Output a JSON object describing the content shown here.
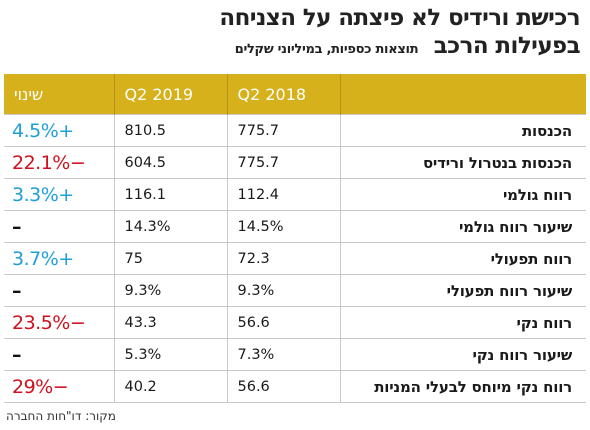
{
  "header": {
    "title_line1": "רכישת ורידיס לא פיצתה על הצניחה",
    "title_line2": "בפעילות הרכב",
    "subtitle": "תוצאות כספיות, במיליוני שקלים"
  },
  "table": {
    "columns": [
      "",
      "Q2 2018",
      "Q2 2019",
      "שינוי"
    ],
    "rows": [
      {
        "label": "הכנסות",
        "q2018": "775.7",
        "q2019": "810.5",
        "change": "+4.5%",
        "dir": "pos"
      },
      {
        "label": "הכנסות בנטרול ורידיס",
        "q2018": "775.7",
        "q2019": "604.5",
        "change": "−22.1%",
        "dir": "neg"
      },
      {
        "label": "רווח גולמי",
        "q2018": "112.4",
        "q2019": "116.1",
        "change": "+3.3%",
        "dir": "pos"
      },
      {
        "label": "שיעור רווח גולמי",
        "q2018": "14.5%",
        "q2019": "14.3%",
        "change": "–",
        "dir": "flat"
      },
      {
        "label": "רווח תפעולי",
        "q2018": "72.3",
        "q2019": "75",
        "change": "+3.7%",
        "dir": "pos"
      },
      {
        "label": "שיעור רווח תפעולי",
        "q2018": "9.3%",
        "q2019": "9.3%",
        "change": "–",
        "dir": "flat"
      },
      {
        "label": "רווח נקי",
        "q2018": "56.6",
        "q2019": "43.3",
        "change": "−23.5%",
        "dir": "neg"
      },
      {
        "label": "שיעור רווח נקי",
        "q2018": "7.3%",
        "q2019": "5.3%",
        "change": "–",
        "dir": "flat"
      },
      {
        "label": "רווח נקי מיוחס לבעלי המניות",
        "q2018": "56.6",
        "q2019": "40.2",
        "change": "−29%",
        "dir": "neg"
      }
    ]
  },
  "footer": {
    "source": "מקור: דו\"חות החברה"
  },
  "colors": {
    "header_bg": "#d6b11c",
    "positive": "#1e9fd8",
    "negative": "#d0101e"
  }
}
